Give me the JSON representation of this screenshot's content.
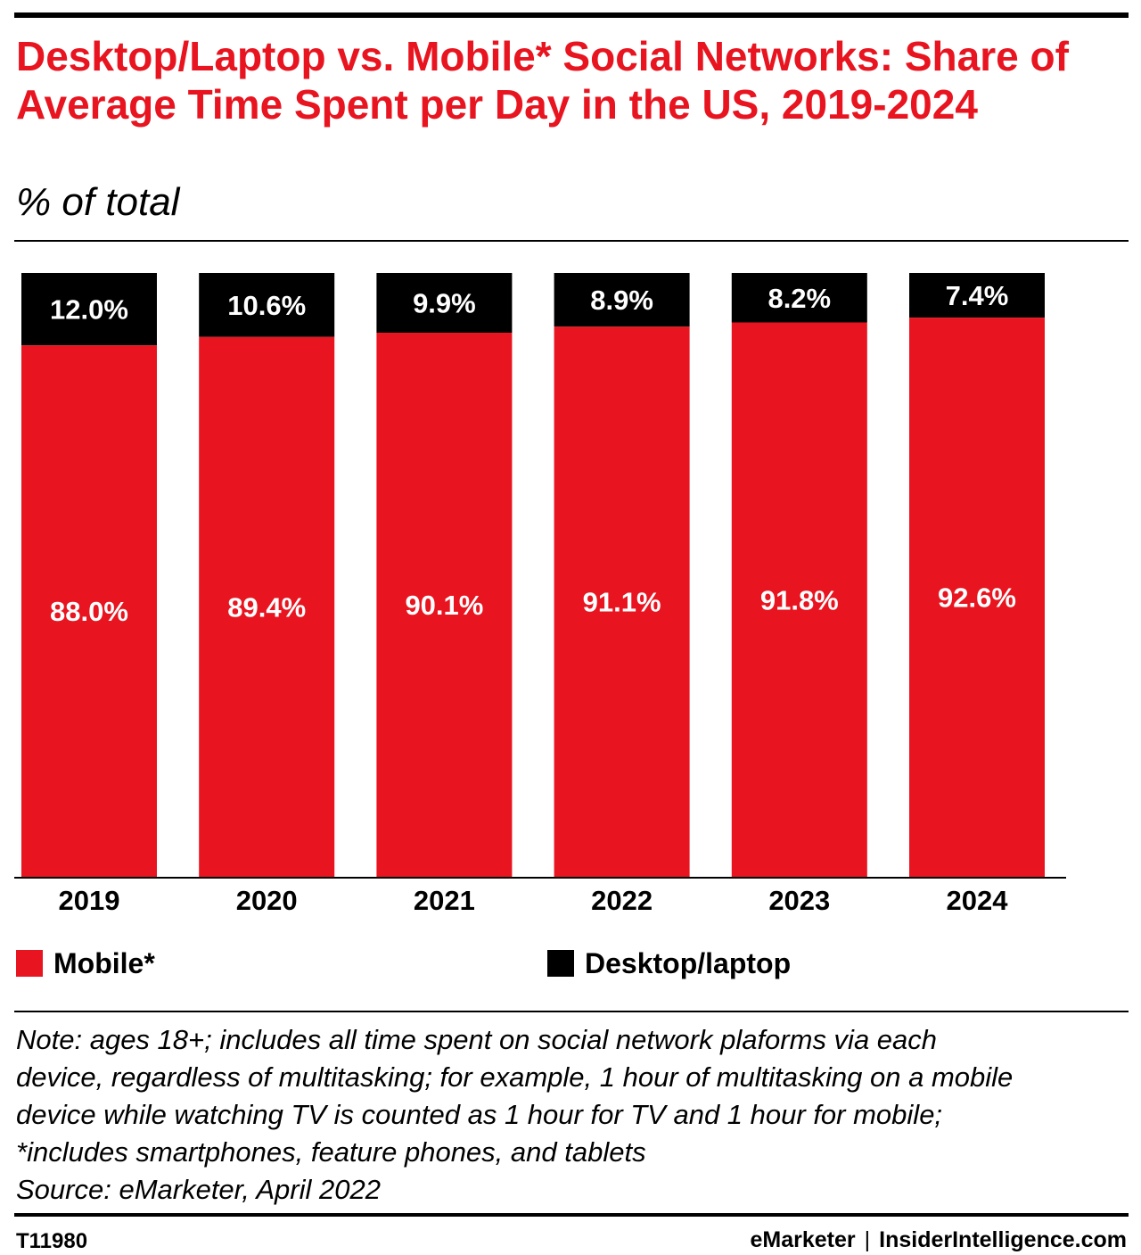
{
  "header": {
    "title": "Desktop/Laptop vs. Mobile* Social Networks: Share of Average Time Spent per Day in the US, 2019-2024",
    "subtitle": "% of total"
  },
  "colors": {
    "mobile": "#e8141f",
    "desktop": "#000000",
    "title": "#e8141f"
  },
  "chart_data": {
    "type": "bar",
    "stacked": true,
    "categories": [
      "2019",
      "2020",
      "2021",
      "2022",
      "2023",
      "2024"
    ],
    "series": [
      {
        "name": "Mobile*",
        "values": [
          88.0,
          89.4,
          90.1,
          91.1,
          91.8,
          92.6
        ],
        "labels": [
          "88.0%",
          "89.4%",
          "90.1%",
          "91.1%",
          "91.8%",
          "92.6%"
        ]
      },
      {
        "name": "Desktop/laptop",
        "values": [
          12.0,
          10.6,
          9.9,
          8.9,
          8.2,
          7.4
        ],
        "labels": [
          "12.0%",
          "10.6%",
          "9.9%",
          "8.9%",
          "8.2%",
          "7.4%"
        ]
      }
    ],
    "ylim": [
      0,
      100
    ],
    "grid": false,
    "legend_position": "bottom"
  },
  "notes": {
    "lines": [
      "Note: ages 18+; includes all time spent on social network plaforms via each",
      "device, regardless of multitasking; for example, 1 hour of multitasking on a mobile",
      "device while watching TV is counted as 1 hour for TV and 1 hour for mobile;",
      "*includes smartphones, feature phones, and tablets",
      "Source: eMarketer, April 2022"
    ]
  },
  "footer": {
    "chart_id": "T11980",
    "brand_left": "eMarketer",
    "separator": "|",
    "brand_right": "InsiderIntelligence.com"
  }
}
